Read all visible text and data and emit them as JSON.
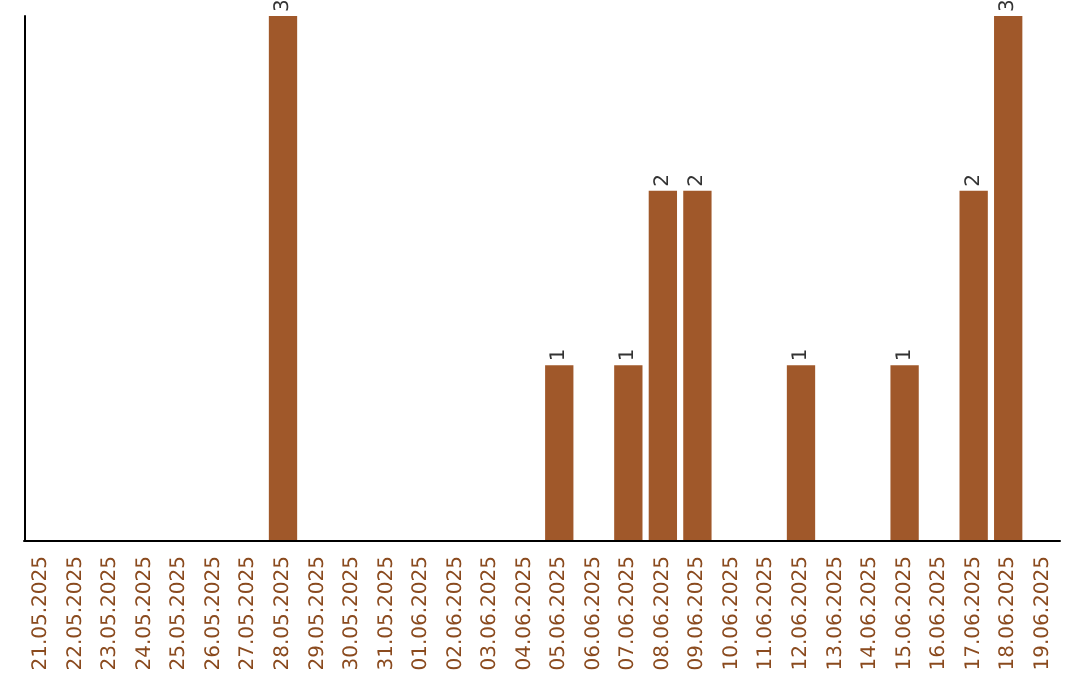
{
  "chart_data": {
    "type": "bar",
    "categories": [
      "21.05.2025",
      "22.05.2025",
      "23.05.2025",
      "24.05.2025",
      "25.05.2025",
      "26.05.2025",
      "27.05.2025",
      "28.05.2025",
      "29.05.2025",
      "30.05.2025",
      "31.05.2025",
      "01.06.2025",
      "02.06.2025",
      "03.06.2025",
      "04.06.2025",
      "05.06.2025",
      "06.06.2025",
      "07.06.2025",
      "08.06.2025",
      "09.06.2025",
      "10.06.2025",
      "11.06.2025",
      "12.06.2025",
      "13.06.2025",
      "14.06.2025",
      "15.06.2025",
      "16.06.2025",
      "17.06.2025",
      "18.06.2025",
      "19.06.2025"
    ],
    "values": [
      0,
      0,
      0,
      0,
      0,
      0,
      0,
      3,
      0,
      0,
      0,
      0,
      0,
      0,
      0,
      1,
      0,
      1,
      2,
      2,
      0,
      0,
      1,
      0,
      0,
      1,
      0,
      2,
      3,
      0
    ],
    "value_labels": [
      null,
      null,
      null,
      null,
      null,
      null,
      null,
      "3",
      null,
      null,
      null,
      null,
      null,
      null,
      null,
      "1",
      null,
      "1",
      "2",
      "2",
      null,
      null,
      "1",
      null,
      null,
      "1",
      null,
      "2",
      "3",
      null
    ],
    "color": "#a0582a",
    "tick_labels": "x"
  }
}
